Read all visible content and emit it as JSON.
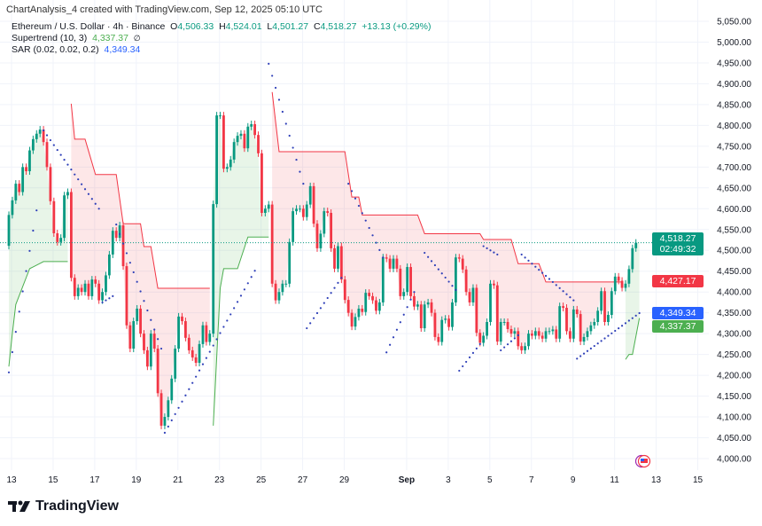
{
  "header": {
    "title": "ChartAnalysis_4 created with TradingView.com, Sep 12, 2025 05:10 UTC"
  },
  "legend": {
    "symbol": "Ethereum / U.S. Dollar · 4h · Binance",
    "o_label": "O",
    "o": "4,506.33",
    "h_label": "H",
    "h": "4,524.01",
    "l_label": "L",
    "l": "4,501.27",
    "c_label": "C",
    "c": "4,518.27",
    "change": "+13.13 (+0.29%)",
    "supertrend_label": "Supertrend (10, 3)",
    "supertrend_value": "4,337.37",
    "supertrend_icon": "∅",
    "sar_label": "SAR (0.02, 0.02, 0.2)",
    "sar_value": "4,349.34"
  },
  "price_labels": {
    "last": "4,518.27",
    "countdown": "02:49:32",
    "supertrend_down": "4,427.17",
    "sar": "4,349.34",
    "supertrend_up": "4,337.37"
  },
  "colors": {
    "up": "#089981",
    "down": "#f23645",
    "sar": "#2e3fb8",
    "st_up": "#4caf50",
    "st_down": "#f23645",
    "last_bg": "#089981",
    "sar_bg": "#2962ff"
  },
  "footer": {
    "logo": "TradingView"
  },
  "chart_data": {
    "type": "candlestick",
    "interval": "4h",
    "first_open": 4511,
    "closes": [
      4585,
      4620,
      4660,
      4640,
      4700,
      4690,
      4740,
      4767,
      4780,
      4790,
      4760,
      4700,
      4618,
      4541,
      4520,
      4530,
      4632,
      4640,
      4434,
      4390,
      4410,
      4400,
      4420,
      4390,
      4430,
      4420,
      4380,
      4400,
      4440,
      4490,
      4547,
      4530,
      4560,
      4462,
      4320,
      4264,
      4330,
      4360,
      4300,
      4260,
      4221,
      4300,
      4264,
      4157,
      4079,
      4100,
      4140,
      4192,
      4264,
      4341,
      4330,
      4290,
      4260,
      4243,
      4230,
      4275,
      4320,
      4280,
      4300,
      4611,
      4824,
      4824,
      4696,
      4700,
      4718,
      4760,
      4775,
      4780,
      4745,
      4797,
      4803,
      4777,
      4733,
      4590,
      4600,
      4610,
      4420,
      4380,
      4400,
      4420,
      4420,
      4520,
      4594,
      4600,
      4600,
      4580,
      4610,
      4654,
      4564,
      4505,
      4540,
      4594,
      4590,
      4505,
      4456,
      4510,
      4430,
      4381,
      4350,
      4317,
      4340,
      4360,
      4352,
      4398,
      4390,
      4380,
      4355,
      4375,
      4483,
      4480,
      4456,
      4480,
      4456,
      4390,
      4400,
      4460,
      4390,
      4365,
      4370,
      4313,
      4370,
      4375,
      4350,
      4292,
      4280,
      4333,
      4336,
      4316,
      4375,
      4483,
      4480,
      4454,
      4400,
      4375,
      4410,
      4302,
      4278,
      4295,
      4328,
      4420,
      4416,
      4281,
      4328,
      4328,
      4311,
      4300,
      4306,
      4270,
      4260,
      4270,
      4300,
      4295,
      4306,
      4295,
      4288,
      4306,
      4306,
      4310,
      4288,
      4366,
      4362,
      4306,
      4288,
      4358,
      4347,
      4281,
      4292,
      4306,
      4320,
      4328,
      4355,
      4402,
      4328,
      4345,
      4402,
      4437,
      4427,
      4410,
      4420,
      4455,
      4505.14,
      4518.27
    ],
    "supertrend": [
      {
        "dir": "up",
        "points": [
          [
            0,
            4221
          ],
          [
            1,
            4300
          ],
          [
            2,
            4370
          ],
          [
            6,
            4456
          ],
          [
            10,
            4473
          ],
          [
            17,
            4473
          ]
        ]
      },
      {
        "dir": "down",
        "points": [
          [
            18,
            4852
          ],
          [
            19,
            4767
          ],
          [
            22,
            4767
          ],
          [
            25,
            4682
          ],
          [
            31,
            4682
          ],
          [
            33,
            4564
          ],
          [
            38,
            4564
          ],
          [
            39,
            4509
          ],
          [
            41,
            4509
          ],
          [
            43,
            4409
          ],
          [
            58,
            4409
          ]
        ]
      },
      {
        "dir": "up",
        "points": [
          [
            59,
            4079
          ],
          [
            61,
            4409
          ],
          [
            62,
            4456
          ],
          [
            66,
            4456
          ],
          [
            69,
            4532
          ],
          [
            75,
            4532
          ]
        ]
      },
      {
        "dir": "down",
        "points": [
          [
            76,
            4880
          ],
          [
            78,
            4737
          ],
          [
            97,
            4737
          ],
          [
            99,
            4628
          ],
          [
            101,
            4628
          ],
          [
            102,
            4585
          ],
          [
            118,
            4585
          ],
          [
            120,
            4540
          ],
          [
            136,
            4540
          ],
          [
            137,
            4526
          ],
          [
            145,
            4526
          ],
          [
            147,
            4468
          ],
          [
            153,
            4468
          ],
          [
            155,
            4424
          ],
          [
            177,
            4424
          ]
        ]
      },
      {
        "dir": "up",
        "points": [
          [
            178,
            4238
          ],
          [
            179,
            4250
          ],
          [
            180,
            4250
          ],
          [
            182,
            4337.37
          ]
        ]
      }
    ],
    "sar": [
      {
        "side": "below",
        "from": [
          0,
          4207
        ],
        "to": [
          8,
          4596
        ]
      },
      {
        "side": "above",
        "from": [
          10,
          4788
        ],
        "to": [
          26,
          4600
        ]
      },
      {
        "side": "below",
        "from": [
          27,
          4375
        ],
        "to": [
          30,
          4390
        ]
      },
      {
        "side": "above",
        "from": [
          31,
          4562
        ],
        "to": [
          44,
          4264
        ]
      },
      {
        "side": "below",
        "from": [
          45,
          4062
        ],
        "to": [
          71,
          4451
        ]
      },
      {
        "side": "above",
        "from": [
          75,
          4948
        ],
        "to": [
          85,
          4660
        ]
      },
      {
        "side": "below",
        "from": [
          86,
          4313
        ],
        "to": [
          96,
          4434
        ]
      },
      {
        "side": "above",
        "from": [
          98,
          4660
        ],
        "to": [
          108,
          4483
        ]
      },
      {
        "side": "below",
        "from": [
          109,
          4255
        ],
        "to": [
          117,
          4400
        ]
      },
      {
        "side": "above",
        "from": [
          120,
          4494
        ],
        "to": [
          129,
          4405
        ]
      },
      {
        "side": "below",
        "from": [
          130,
          4211
        ],
        "to": [
          136,
          4275
        ]
      },
      {
        "side": "above",
        "from": [
          137,
          4510
        ],
        "to": [
          141,
          4490
        ]
      },
      {
        "side": "below",
        "from": [
          142,
          4260
        ],
        "to": [
          147,
          4296
        ]
      },
      {
        "side": "above",
        "from": [
          148,
          4490
        ],
        "to": [
          163,
          4380
        ]
      },
      {
        "side": "below",
        "from": [
          164,
          4240
        ],
        "to": [
          182,
          4349.34
        ]
      }
    ],
    "y_ticks": [
      "5,050.00",
      "5,000.00",
      "4,950.00",
      "4,900.00",
      "4,850.00",
      "4,800.00",
      "4,750.00",
      "4,700.00",
      "4,650.00",
      "4,600.00",
      "4,550.00",
      "4,500.00",
      "4,450.00",
      "4,400.00",
      "4,350.00",
      "4,300.00",
      "4,250.00",
      "4,200.00",
      "4,150.00",
      "4,100.00",
      "4,050.00",
      "4,000.00"
    ],
    "ylim": [
      4000,
      5050
    ],
    "x_ticks": [
      "13",
      "15",
      "17",
      "19",
      "21",
      "23",
      "25",
      "27",
      "29",
      "Sep",
      "3",
      "5",
      "7",
      "9",
      "11",
      "13",
      "15"
    ],
    "grid": true
  }
}
